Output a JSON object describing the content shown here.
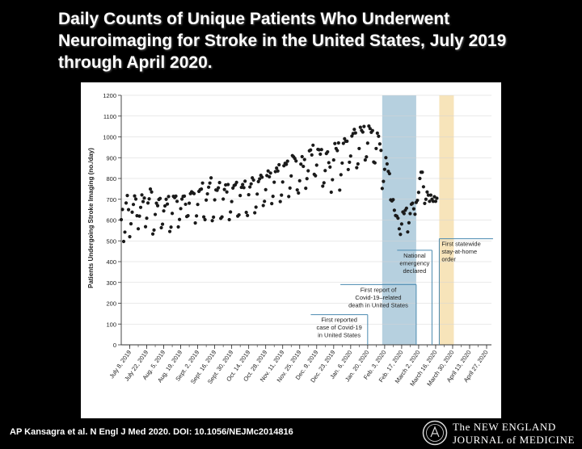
{
  "slide": {
    "title": "Daily Counts of Unique Patients Who Underwent Neuroimaging for Stroke in the United States, July 2019 through April 2020.",
    "citation": "AP Kansagra et al. N Engl J Med 2020. DOI: 10.1056/NEJMc2014816",
    "journal_name": [
      "The NEW ENGLAND",
      "JOURNAL of MEDICINE"
    ]
  },
  "chart_data": {
    "type": "scatter",
    "ylabel": "Patients Undergoing Stroke Imaging (no./day)",
    "xlabel": "",
    "ylim": [
      0,
      1200
    ],
    "yticks": [
      0,
      100,
      200,
      300,
      400,
      500,
      600,
      700,
      800,
      900,
      1000,
      1100,
      1200
    ],
    "xlim": [
      "2019-07-01",
      "2020-05-01"
    ],
    "xtick_labels": [
      {
        "date": "2019-07-08",
        "label": "July 8, 2019"
      },
      {
        "date": "2019-07-22",
        "label": "July 22, 2019"
      },
      {
        "date": "2019-08-05",
        "label": "Aug. 5, 2019"
      },
      {
        "date": "2019-08-19",
        "label": "Aug. 19, 2019"
      },
      {
        "date": "2019-09-02",
        "label": "Sept. 2, 2019"
      },
      {
        "date": "2019-09-16",
        "label": "Sept. 16, 2019"
      },
      {
        "date": "2019-09-30",
        "label": "Sept. 30, 2019"
      },
      {
        "date": "2019-10-14",
        "label": "Oct. 14, 2019"
      },
      {
        "date": "2019-10-28",
        "label": "Oct. 28, 2019"
      },
      {
        "date": "2019-11-11",
        "label": "Nov. 11, 2019"
      },
      {
        "date": "2019-11-25",
        "label": "Nov. 25, 2019"
      },
      {
        "date": "2019-12-09",
        "label": "Dec. 9, 2019"
      },
      {
        "date": "2019-12-23",
        "label": "Dec. 23, 2019"
      },
      {
        "date": "2020-01-06",
        "label": "Jan. 6, 2020"
      },
      {
        "date": "2020-01-20",
        "label": "Jan. 20, 2020"
      },
      {
        "date": "2020-02-03",
        "label": "Feb. 3, 2020"
      },
      {
        "date": "2020-02-17",
        "label": "Feb. 17, 2020"
      },
      {
        "date": "2020-03-02",
        "label": "March 2, 2020"
      },
      {
        "date": "2020-03-16",
        "label": "March 16, 2020"
      },
      {
        "date": "2020-03-30",
        "label": "March 30, 2020"
      },
      {
        "date": "2020-04-13",
        "label": "April 13, 2020"
      },
      {
        "date": "2020-04-27",
        "label": "April 27, 2020"
      }
    ],
    "grid": {
      "horizontal": true,
      "vertical": false
    },
    "shaded_periods": [
      {
        "start": "2020-02-01",
        "end": "2020-02-29",
        "color": "#a9c8d9"
      },
      {
        "start": "2020-03-19",
        "end": "2020-03-31",
        "color": "#f6dfae"
      }
    ],
    "annotations": [
      {
        "date": "2020-01-20",
        "y": 145,
        "lines": [
          "First reported",
          "case of Covid-19",
          "in United States"
        ]
      },
      {
        "date": "2020-02-29",
        "y": 290,
        "lines": [
          "First report of",
          "Covid-19–related",
          "death in United States"
        ]
      },
      {
        "date": "2020-03-13",
        "y": 455,
        "lines": [
          "National",
          "emergency",
          "declared"
        ]
      },
      {
        "date": "2020-03-19",
        "y": 510,
        "lines": [
          "First statewide",
          "stay-at-home",
          "order"
        ]
      }
    ],
    "series": [
      {
        "start_date": "2019-07-01",
        "values": [
          602,
          651,
          497,
          542,
          682,
          718,
          650,
          520,
          582,
          638,
          675,
          716,
          701,
          621,
          558,
          619,
          661,
          721,
          689,
          706,
          568,
          609,
          682,
          702,
          749,
          735,
          533,
          552,
          627,
          681,
          669,
          699,
          704,
          563,
          580,
          644,
          668,
          700,
          677,
          713,
          545,
          566,
          632,
          714,
          708,
          715,
          690,
          567,
          603,
          655,
          701,
          714,
          715,
          676,
          617,
          621,
          681,
          727,
          736,
          731,
          727,
          586,
          620,
          675,
          738,
          746,
          749,
          778,
          615,
          602,
          696,
          726,
          758,
          778,
          803,
          597,
          614,
          697,
          745,
          743,
          755,
          780,
          608,
          615,
          701,
          747,
          769,
          735,
          771,
          602,
          639,
          689,
          754,
          766,
          770,
          781,
          619,
          625,
          718,
          757,
          771,
          756,
          787,
          637,
          622,
          722,
          759,
          774,
          803,
          792,
          635,
          662,
          725,
          785,
          798,
          815,
          806,
          670,
          690,
          746,
          814,
          836,
          808,
          826,
          679,
          714,
          782,
          833,
          850,
          836,
          866,
          689,
          720,
          783,
          861,
          873,
          868,
          883,
          713,
          754,
          812,
          910,
          904,
          896,
          884,
          745,
          730,
          789,
          869,
          905,
          858,
          891,
          753,
          799,
          837,
          933,
          937,
          913,
          960,
          820,
          813,
          864,
          940,
          938,
          917,
          939,
          763,
          779,
          838,
          920,
          928,
          876,
          855,
          734,
          794,
          889,
          968,
          944,
          934,
          971,
          744,
          818,
          874,
          969,
          991,
          979,
          979,
          843,
          878,
          908,
          1004,
          1016,
          1036,
          1019,
          852,
          870,
          944,
          1046,
          1031,
          1023,
          1050,
          889,
          904,
          970,
          1052,
          1040,
          1022,
          1030,
          879,
          875,
          944,
          1018,
          1003,
          966,
          935,
          752,
          786,
          844,
          900,
          870,
          834,
          823,
          697,
          692,
          698,
          647,
          622,
          619,
          609,
          558,
          531,
          581,
          639,
          631,
          647,
          657,
          543,
          587,
          631,
          676,
          681,
          654,
          628,
          685,
          695,
          733,
          800,
          830,
          830,
          760,
          680,
          700,
          735,
          720,
          690,
          720,
          700,
          690,
          712,
          690,
          705
        ]
      }
    ]
  }
}
